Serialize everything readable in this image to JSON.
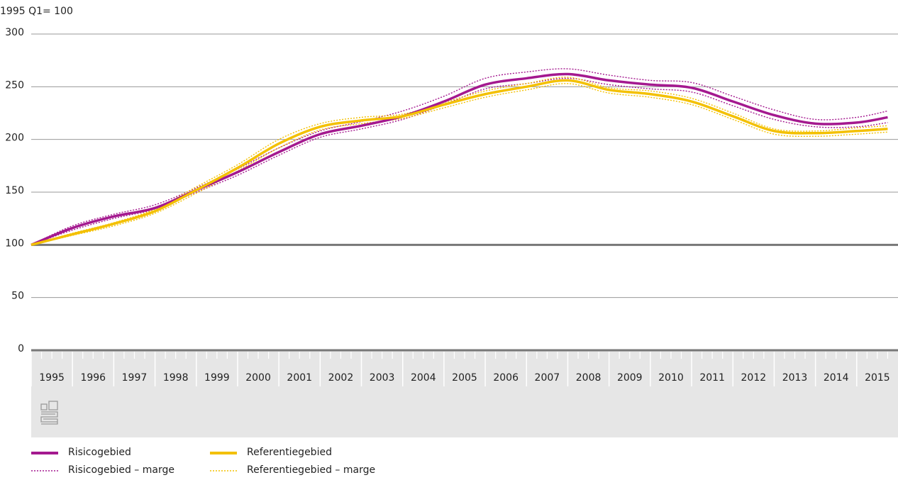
{
  "chart_data": {
    "type": "line",
    "y_axis_label": "1995 Q1= 100",
    "categories": [
      "1995",
      "1996",
      "1997",
      "1998",
      "1999",
      "2000",
      "2001",
      "2002",
      "2003",
      "2004",
      "2005",
      "2006",
      "2007",
      "2008",
      "2009",
      "2010",
      "2011",
      "2012",
      "2013",
      "2014",
      "2015"
    ],
    "x": [
      1995,
      1996,
      1997,
      1998,
      1999,
      2000,
      2001,
      2002,
      2003,
      2004,
      2005,
      2006,
      2007,
      2008,
      2009,
      2010,
      2011,
      2012,
      2013,
      2014,
      2015,
      2015.75
    ],
    "xlim": [
      1995,
      2016
    ],
    "ylim": [
      0,
      300
    ],
    "yticks": [
      0,
      50,
      100,
      150,
      200,
      250,
      300
    ],
    "reference_line": 100,
    "grid": true,
    "series": [
      {
        "name": "Risicogebied",
        "color": "#a4198f",
        "dashed": false,
        "values": [
          100,
          116,
          127,
          135,
          152,
          169,
          188,
          205,
          213,
          222,
          236,
          252,
          258,
          262,
          256,
          252,
          249,
          236,
          223,
          215,
          216,
          221
        ]
      },
      {
        "name": "Risicogebied – marge",
        "color": "#a4198f",
        "dashed": true,
        "values": [
          100,
          118,
          129,
          138,
          154,
          172,
          192,
          208,
          217,
          227,
          241,
          258,
          264,
          267,
          261,
          256,
          254,
          241,
          228,
          219,
          221,
          227
        ]
      },
      {
        "name": "Risicogebied – marge",
        "color": "#a4198f",
        "dashed": true,
        "legend": false,
        "values": [
          100,
          114,
          125,
          134,
          150,
          166,
          185,
          202,
          210,
          219,
          233,
          248,
          253,
          258,
          252,
          248,
          245,
          232,
          219,
          212,
          212,
          216
        ]
      },
      {
        "name": "Referentiegebied",
        "color": "#f3c000",
        "dashed": false,
        "values": [
          100,
          110,
          120,
          132,
          152,
          173,
          196,
          212,
          218,
          222,
          233,
          243,
          250,
          256,
          247,
          243,
          236,
          222,
          208,
          206,
          208,
          210
        ]
      },
      {
        "name": "Referentiegebied – marge",
        "color": "#f3c000",
        "dashed": true,
        "values": [
          100,
          111,
          121,
          134,
          155,
          176,
          200,
          215,
          221,
          224,
          235,
          246,
          253,
          259,
          249,
          246,
          239,
          225,
          210,
          208,
          211,
          213
        ]
      },
      {
        "name": "Referentiegebied – marge",
        "color": "#f3c000",
        "dashed": true,
        "legend": false,
        "values": [
          100,
          109,
          118,
          130,
          149,
          170,
          192,
          209,
          215,
          220,
          230,
          240,
          247,
          253,
          244,
          240,
          233,
          219,
          205,
          203,
          205,
          207
        ]
      }
    ]
  }
}
